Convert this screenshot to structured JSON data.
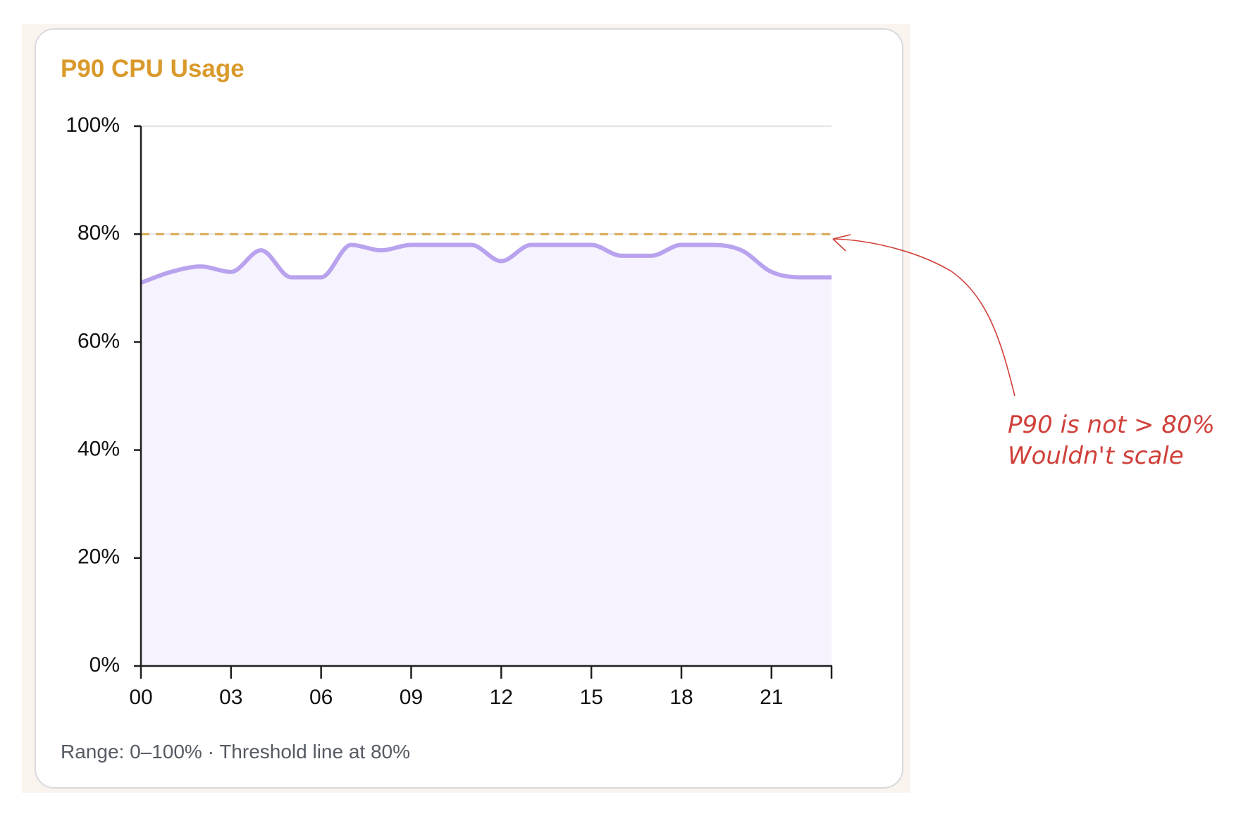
{
  "chart_data": {
    "type": "area",
    "title": "P90 CPU Usage",
    "x": [
      0,
      1,
      2,
      3,
      4,
      5,
      6,
      7,
      8,
      9,
      10,
      11,
      12,
      13,
      14,
      15,
      16,
      17,
      18,
      19,
      20,
      21,
      22,
      23
    ],
    "values": [
      71,
      73,
      74,
      73,
      77,
      72,
      72,
      78,
      77,
      78,
      78,
      78,
      75,
      78,
      78,
      78,
      76,
      76,
      78,
      78,
      77,
      73,
      72,
      72
    ],
    "xlim": [
      0,
      23
    ],
    "ylim": [
      0,
      100
    ],
    "x_ticks": [
      0,
      3,
      6,
      9,
      12,
      15,
      18,
      21
    ],
    "x_tick_labels": [
      "00",
      "03",
      "06",
      "09",
      "12",
      "15",
      "18",
      "21"
    ],
    "y_ticks": [
      0,
      20,
      40,
      60,
      80,
      100
    ],
    "y_tick_labels": [
      "0%",
      "20%",
      "40%",
      "60%",
      "80%",
      "100%"
    ],
    "threshold": 80,
    "grid": true,
    "footer": "Range: 0–100% · Threshold line at 80%",
    "colors": {
      "title": "#D99A2B",
      "line": "#B9A2EE",
      "fill": "#F6F2FE",
      "threshold": "#D9A850",
      "grid": "#E3E3E8",
      "annotation": "#D0403A"
    }
  },
  "annotation": {
    "line1": "P90 is not > 80%",
    "line2": "Wouldn't scale"
  }
}
